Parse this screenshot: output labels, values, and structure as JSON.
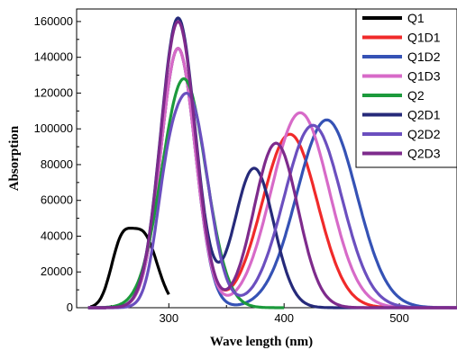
{
  "chart_data": {
    "type": "line",
    "title": "",
    "xlabel": "Wave length (nm)",
    "ylabel": "Absorption",
    "xlim": [
      220,
      550
    ],
    "ylim": [
      0,
      167000
    ],
    "xticks": [
      300,
      400,
      500
    ],
    "yticks": [
      0,
      20000,
      40000,
      60000,
      80000,
      100000,
      120000,
      140000,
      160000
    ],
    "grid": false,
    "legend_position": "top-right",
    "series": [
      {
        "name": "Q1",
        "color": "#000000",
        "peaks": [
          {
            "center": 278,
            "height": 40000,
            "width": 12
          },
          {
            "center": 258,
            "height": 30000,
            "width": 9
          }
        ],
        "xrange": [
          232,
          300
        ]
      },
      {
        "name": "Q1D1",
        "color": "#f02a2a",
        "peaks": [
          {
            "center": 308,
            "height": 145000,
            "width": 15
          },
          {
            "center": 405,
            "height": 97000,
            "width": 24
          }
        ],
        "xrange": [
          230,
          550
        ]
      },
      {
        "name": "Q1D2",
        "color": "#3552b5",
        "peaks": [
          {
            "center": 308,
            "height": 145000,
            "width": 15
          },
          {
            "center": 437,
            "height": 105000,
            "width": 26
          }
        ],
        "xrange": [
          230,
          550
        ]
      },
      {
        "name": "Q1D3",
        "color": "#d76ac8",
        "peaks": [
          {
            "center": 308,
            "height": 145000,
            "width": 15
          },
          {
            "center": 414,
            "height": 109000,
            "width": 25
          }
        ],
        "xrange": [
          230,
          550
        ]
      },
      {
        "name": "Q2",
        "color": "#1c9a3c",
        "peaks": [
          {
            "center": 313,
            "height": 128000,
            "width": 19
          }
        ],
        "xrange": [
          230,
          400
        ]
      },
      {
        "name": "Q2D1",
        "color": "#262a7a",
        "peaks": [
          {
            "center": 308,
            "height": 162000,
            "width": 15
          },
          {
            "center": 374,
            "height": 78000,
            "width": 17
          }
        ],
        "xrange": [
          230,
          550
        ]
      },
      {
        "name": "Q2D2",
        "color": "#6b4fbf",
        "peaks": [
          {
            "center": 318,
            "height": 115000,
            "width": 16
          },
          {
            "center": 297,
            "height": 35000,
            "width": 10
          },
          {
            "center": 425,
            "height": 102000,
            "width": 25
          }
        ],
        "xrange": [
          230,
          550
        ]
      },
      {
        "name": "Q2D3",
        "color": "#7e2b8c",
        "peaks": [
          {
            "center": 308,
            "height": 160000,
            "width": 15
          },
          {
            "center": 393,
            "height": 92000,
            "width": 19
          }
        ],
        "xrange": [
          230,
          550
        ]
      }
    ]
  }
}
